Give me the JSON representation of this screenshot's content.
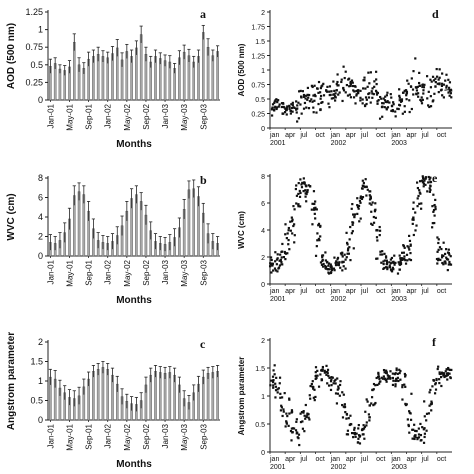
{
  "chart_data": [
    {
      "id": "a",
      "letter": "a",
      "type": "bar",
      "ylabel": "AOD (500 nm)",
      "xlabel": "Months",
      "ylim": [
        0,
        1.25
      ],
      "yticks": [
        "0",
        "0.25",
        "0.5",
        "0.75",
        "1",
        "1.25"
      ],
      "x_tick_labels": [
        "Jan-01",
        "May-01",
        "Sep-01",
        "Jan-02",
        "May-02",
        "Sep-02",
        "Jan-03",
        "May-03",
        "Sep-03"
      ],
      "values": [
        0.48,
        0.52,
        0.44,
        0.42,
        0.47,
        0.82,
        0.5,
        0.45,
        0.58,
        0.62,
        0.65,
        0.62,
        0.6,
        0.66,
        0.74,
        0.57,
        0.69,
        0.62,
        0.74,
        0.93,
        0.65,
        0.54,
        0.62,
        0.59,
        0.56,
        0.54,
        0.45,
        0.6,
        0.68,
        0.63,
        0.54,
        0.62,
        0.96,
        0.75,
        0.63,
        0.69
      ],
      "errors": [
        0.1,
        0.08,
        0.06,
        0.07,
        0.09,
        0.12,
        0.1,
        0.08,
        0.1,
        0.09,
        0.1,
        0.08,
        0.08,
        0.1,
        0.12,
        0.1,
        0.1,
        0.09,
        0.1,
        0.12,
        0.1,
        0.08,
        0.09,
        0.08,
        0.08,
        0.09,
        0.07,
        0.1,
        0.1,
        0.09,
        0.08,
        0.09,
        0.1,
        0.12,
        0.08,
        0.08
      ]
    },
    {
      "id": "b",
      "letter": "b",
      "type": "bar",
      "ylabel": "WVC (cm)",
      "xlabel": "Months",
      "ylim": [
        0,
        8
      ],
      "yticks": [
        "0",
        "2",
        "4",
        "6",
        "8"
      ],
      "x_tick_labels": [
        "Jan-01",
        "May-01",
        "Sep-01",
        "Jan-02",
        "May-02",
        "Sep-02",
        "Jan-03",
        "May-03",
        "Sep-03"
      ],
      "values": [
        1.4,
        1.3,
        1.6,
        2.4,
        3.8,
        6.2,
        6.6,
        6.3,
        4.6,
        2.8,
        1.6,
        1.4,
        1.3,
        1.5,
        2.1,
        3.1,
        4.6,
        5.9,
        6.3,
        5.6,
        4.2,
        2.6,
        1.5,
        1.3,
        1.2,
        1.4,
        1.9,
        2.9,
        4.8,
        6.8,
        6.9,
        6.1,
        4.4,
        2.3,
        1.5,
        1.3
      ],
      "errors": [
        0.8,
        0.7,
        0.8,
        1.0,
        1.1,
        1.0,
        0.9,
        0.9,
        1.0,
        1.0,
        0.8,
        0.7,
        0.7,
        0.8,
        0.9,
        1.0,
        1.0,
        1.0,
        0.9,
        0.9,
        1.0,
        0.9,
        0.8,
        0.7,
        0.7,
        0.8,
        0.9,
        1.0,
        1.0,
        0.9,
        0.9,
        1.0,
        1.0,
        1.0,
        0.8,
        0.7
      ]
    },
    {
      "id": "c",
      "letter": "c",
      "type": "bar",
      "ylabel": "Angstrom parameter",
      "xlabel": "Months",
      "ylim": [
        0,
        2
      ],
      "yticks": [
        "0",
        "0.5",
        "1",
        "1.5",
        "2"
      ],
      "x_tick_labels": [
        "Jan-01",
        "May-01",
        "Sep-01",
        "Jan-02",
        "May-02",
        "Sep-02",
        "Jan-03",
        "May-03",
        "Sep-03"
      ],
      "values": [
        1.1,
        1.05,
        0.82,
        0.7,
        0.58,
        0.55,
        0.62,
        0.85,
        1.05,
        1.25,
        1.3,
        1.35,
        1.3,
        1.15,
        0.92,
        0.6,
        0.48,
        0.42,
        0.4,
        0.5,
        0.9,
        1.15,
        1.25,
        1.22,
        1.2,
        1.22,
        1.15,
        0.9,
        0.55,
        0.45,
        0.7,
        0.92,
        1.1,
        1.2,
        1.22,
        1.25
      ],
      "errors": [
        0.2,
        0.22,
        0.2,
        0.18,
        0.2,
        0.2,
        0.22,
        0.2,
        0.18,
        0.15,
        0.15,
        0.15,
        0.15,
        0.18,
        0.2,
        0.2,
        0.18,
        0.18,
        0.18,
        0.2,
        0.2,
        0.18,
        0.15,
        0.15,
        0.15,
        0.15,
        0.18,
        0.2,
        0.2,
        0.18,
        0.2,
        0.2,
        0.18,
        0.15,
        0.15,
        0.15
      ]
    },
    {
      "id": "d",
      "letter": "d",
      "type": "scatter",
      "ylabel": "AOD (500 nm)",
      "xlabel": "",
      "ylim": [
        0,
        2
      ],
      "yticks": [
        "0",
        "0.25",
        "0.5",
        "0.75",
        "1",
        "1.25",
        "1.5",
        "1.75",
        "2"
      ],
      "x_tick_labels": [
        "jan",
        "apr",
        "jul",
        "oct",
        "jan",
        "apr",
        "jul",
        "oct",
        "jan",
        "apr",
        "jul",
        "oct"
      ],
      "year_labels": [
        "2001",
        "2002",
        "2003"
      ],
      "xlim": [
        0,
        36
      ],
      "seasonal_mean": [
        0.36,
        0.4,
        0.33,
        0.3,
        0.32,
        0.42,
        0.48,
        0.5,
        0.6,
        0.58,
        0.62,
        0.6,
        0.55,
        0.7,
        0.72,
        0.63,
        0.62,
        0.55,
        0.62,
        0.7,
        0.65,
        0.5,
        0.42,
        0.45,
        0.35,
        0.42,
        0.5,
        0.62,
        0.7,
        0.65,
        0.58,
        0.62,
        0.8,
        0.7,
        0.66,
        0.68
      ],
      "seasonal_spread": [
        0.1,
        0.1,
        0.08,
        0.08,
        0.1,
        0.18,
        0.2,
        0.2,
        0.22,
        0.2,
        0.2,
        0.18,
        0.18,
        0.22,
        0.25,
        0.2,
        0.2,
        0.2,
        0.25,
        0.3,
        0.25,
        0.2,
        0.15,
        0.15,
        0.12,
        0.15,
        0.2,
        0.22,
        0.3,
        0.28,
        0.2,
        0.25,
        0.3,
        0.25,
        0.2,
        0.15
      ],
      "points_per_month": 10,
      "trend_line": [
        [
          34.5,
          0.65
        ],
        [
          36,
          0.67
        ]
      ]
    },
    {
      "id": "e",
      "letter": "e",
      "type": "scatter",
      "ylabel": "WVC (cm)",
      "xlabel": "",
      "ylim": [
        0,
        8
      ],
      "yticks": [
        "0",
        "2",
        "4",
        "6",
        "8"
      ],
      "x_tick_labels": [
        "jan",
        "apr",
        "jul",
        "oct",
        "jan",
        "apr",
        "jul",
        "oct",
        "jan",
        "apr",
        "jul",
        "oct"
      ],
      "year_labels": [
        "2001",
        "2002",
        "2003"
      ],
      "xlim": [
        0,
        36
      ],
      "seasonal_mean": [
        1.4,
        1.5,
        2.2,
        3.2,
        4.5,
        6.5,
        7.2,
        7.0,
        5.8,
        3.8,
        1.8,
        1.4,
        1.3,
        1.4,
        1.8,
        2.8,
        4.2,
        5.8,
        6.9,
        6.6,
        5.4,
        3.6,
        1.8,
        1.5,
        1.3,
        1.5,
        2.0,
        3.0,
        4.6,
        6.4,
        7.6,
        7.4,
        5.6,
        3.0,
        2.2,
        1.8
      ],
      "seasonal_spread": [
        0.5,
        0.6,
        0.8,
        1.0,
        1.1,
        0.8,
        0.5,
        0.6,
        1.0,
        1.2,
        0.8,
        0.5,
        0.5,
        0.5,
        0.7,
        0.9,
        1.1,
        0.9,
        0.6,
        0.6,
        1.0,
        1.2,
        0.8,
        0.5,
        0.5,
        0.6,
        0.8,
        1.0,
        1.2,
        0.9,
        0.4,
        0.5,
        1.1,
        1.2,
        0.8,
        0.6
      ],
      "points_per_month": 12
    },
    {
      "id": "f",
      "letter": "f",
      "type": "scatter",
      "ylabel": "Angstrom parameter",
      "xlabel": "",
      "ylim": [
        0,
        2
      ],
      "yticks": [
        "0",
        "0.5",
        "1",
        "1.5",
        "2"
      ],
      "x_tick_labels": [
        "jan",
        "apr",
        "jul",
        "oct",
        "jan",
        "apr",
        "jul",
        "oct",
        "jan",
        "apr",
        "jul",
        "oct"
      ],
      "year_labels": [
        "2001",
        "2002",
        "2003"
      ],
      "xlim": [
        0,
        36
      ],
      "seasonal_mean": [
        1.3,
        1.2,
        0.9,
        0.7,
        0.5,
        0.4,
        0.5,
        0.8,
        1.1,
        1.3,
        1.4,
        1.4,
        1.3,
        1.1,
        0.8,
        0.5,
        0.35,
        0.3,
        0.35,
        0.6,
        1.0,
        1.3,
        1.35,
        1.35,
        1.3,
        1.3,
        1.1,
        0.7,
        0.4,
        0.35,
        0.5,
        0.9,
        1.2,
        1.35,
        1.4,
        1.4
      ],
      "seasonal_spread": [
        0.15,
        0.2,
        0.25,
        0.25,
        0.25,
        0.2,
        0.25,
        0.25,
        0.2,
        0.15,
        0.12,
        0.12,
        0.12,
        0.18,
        0.25,
        0.25,
        0.2,
        0.18,
        0.2,
        0.25,
        0.25,
        0.15,
        0.12,
        0.12,
        0.12,
        0.15,
        0.25,
        0.25,
        0.2,
        0.18,
        0.25,
        0.25,
        0.2,
        0.15,
        0.12,
        0.12
      ],
      "points_per_month": 10
    }
  ]
}
